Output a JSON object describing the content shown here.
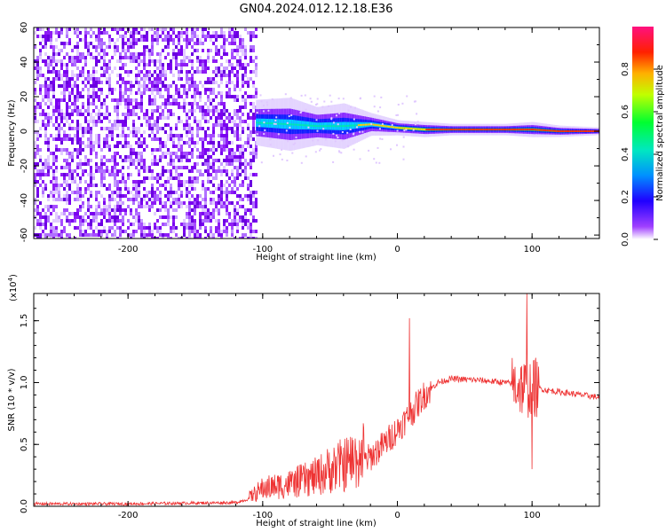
{
  "title": "GN04.2024.012.12.18.E36",
  "chart_data": [
    {
      "type": "heatmap",
      "xlabel": "Height of straight line (km)",
      "ylabel": "Frequency (Hz)",
      "xlim": [
        -270,
        150
      ],
      "ylim": [
        -62,
        60
      ],
      "xticks": [
        -200,
        -100,
        0,
        100
      ],
      "yticks": [
        60,
        40,
        20,
        0,
        -20,
        -40,
        -60
      ],
      "colorbar": {
        "label": "Normalized spectral amplitude",
        "range": [
          0,
          1
        ],
        "ticks": [
          "0.0",
          "0.2",
          "0.4",
          "0.6",
          "0.8"
        ],
        "colormap": [
          "#ffffff",
          "#8a00ff",
          "#0000ff",
          "#00e0ff",
          "#00ff40",
          "#ffff00",
          "#ff6a00",
          "#ff0000",
          "#ff2080"
        ]
      },
      "noise_region_x": [
        -270,
        -104
      ],
      "signal_band": {
        "x": [
          -105,
          -80,
          -60,
          -40,
          -20,
          0,
          20,
          40,
          60,
          80,
          100,
          120,
          150
        ],
        "center_hz": [
          5,
          4,
          3,
          3,
          4,
          2,
          1,
          1,
          1,
          1,
          1,
          0,
          0
        ],
        "half_width_hz": [
          6,
          7,
          5,
          6,
          3,
          2,
          2,
          1.5,
          1.5,
          1.5,
          2,
          1.5,
          1
        ]
      }
    },
    {
      "type": "line",
      "xlabel": "Height of straight line (km)",
      "ylabel": "SNR (10 * v/v)",
      "yscale_label": "(x10",
      "yscale_exp": "4",
      "yscale_tail": ")",
      "xlim": [
        -270,
        150
      ],
      "ylim": [
        0,
        1.72
      ],
      "xticks": [
        -200,
        -100,
        0,
        100
      ],
      "yticks": [
        "0.0",
        "0.5",
        "1.0",
        "1.5"
      ],
      "ytick_values": [
        0,
        0.5,
        1.0,
        1.5
      ],
      "color": "#ee3333",
      "series": [
        {
          "x": [
            -270,
            -200,
            -120,
            -110,
            -100,
            -80,
            -60,
            -50,
            -40,
            -30,
            -20,
            -10,
            0,
            10,
            20,
            30,
            40,
            60,
            80,
            90,
            95,
            100,
            110,
            130,
            150
          ],
          "y": [
            0.02,
            0.02,
            0.03,
            0.06,
            0.12,
            0.15,
            0.2,
            0.25,
            0.28,
            0.32,
            0.4,
            0.5,
            0.62,
            0.75,
            0.9,
            1.0,
            1.03,
            1.02,
            1.0,
            0.98,
            0.95,
            0.97,
            0.94,
            0.91,
            0.88
          ]
        }
      ],
      "spikes": [
        {
          "x": 9,
          "y": 1.52
        },
        {
          "x": 96,
          "y": 1.72
        },
        {
          "x": 100,
          "y": 0.3
        }
      ]
    }
  ]
}
